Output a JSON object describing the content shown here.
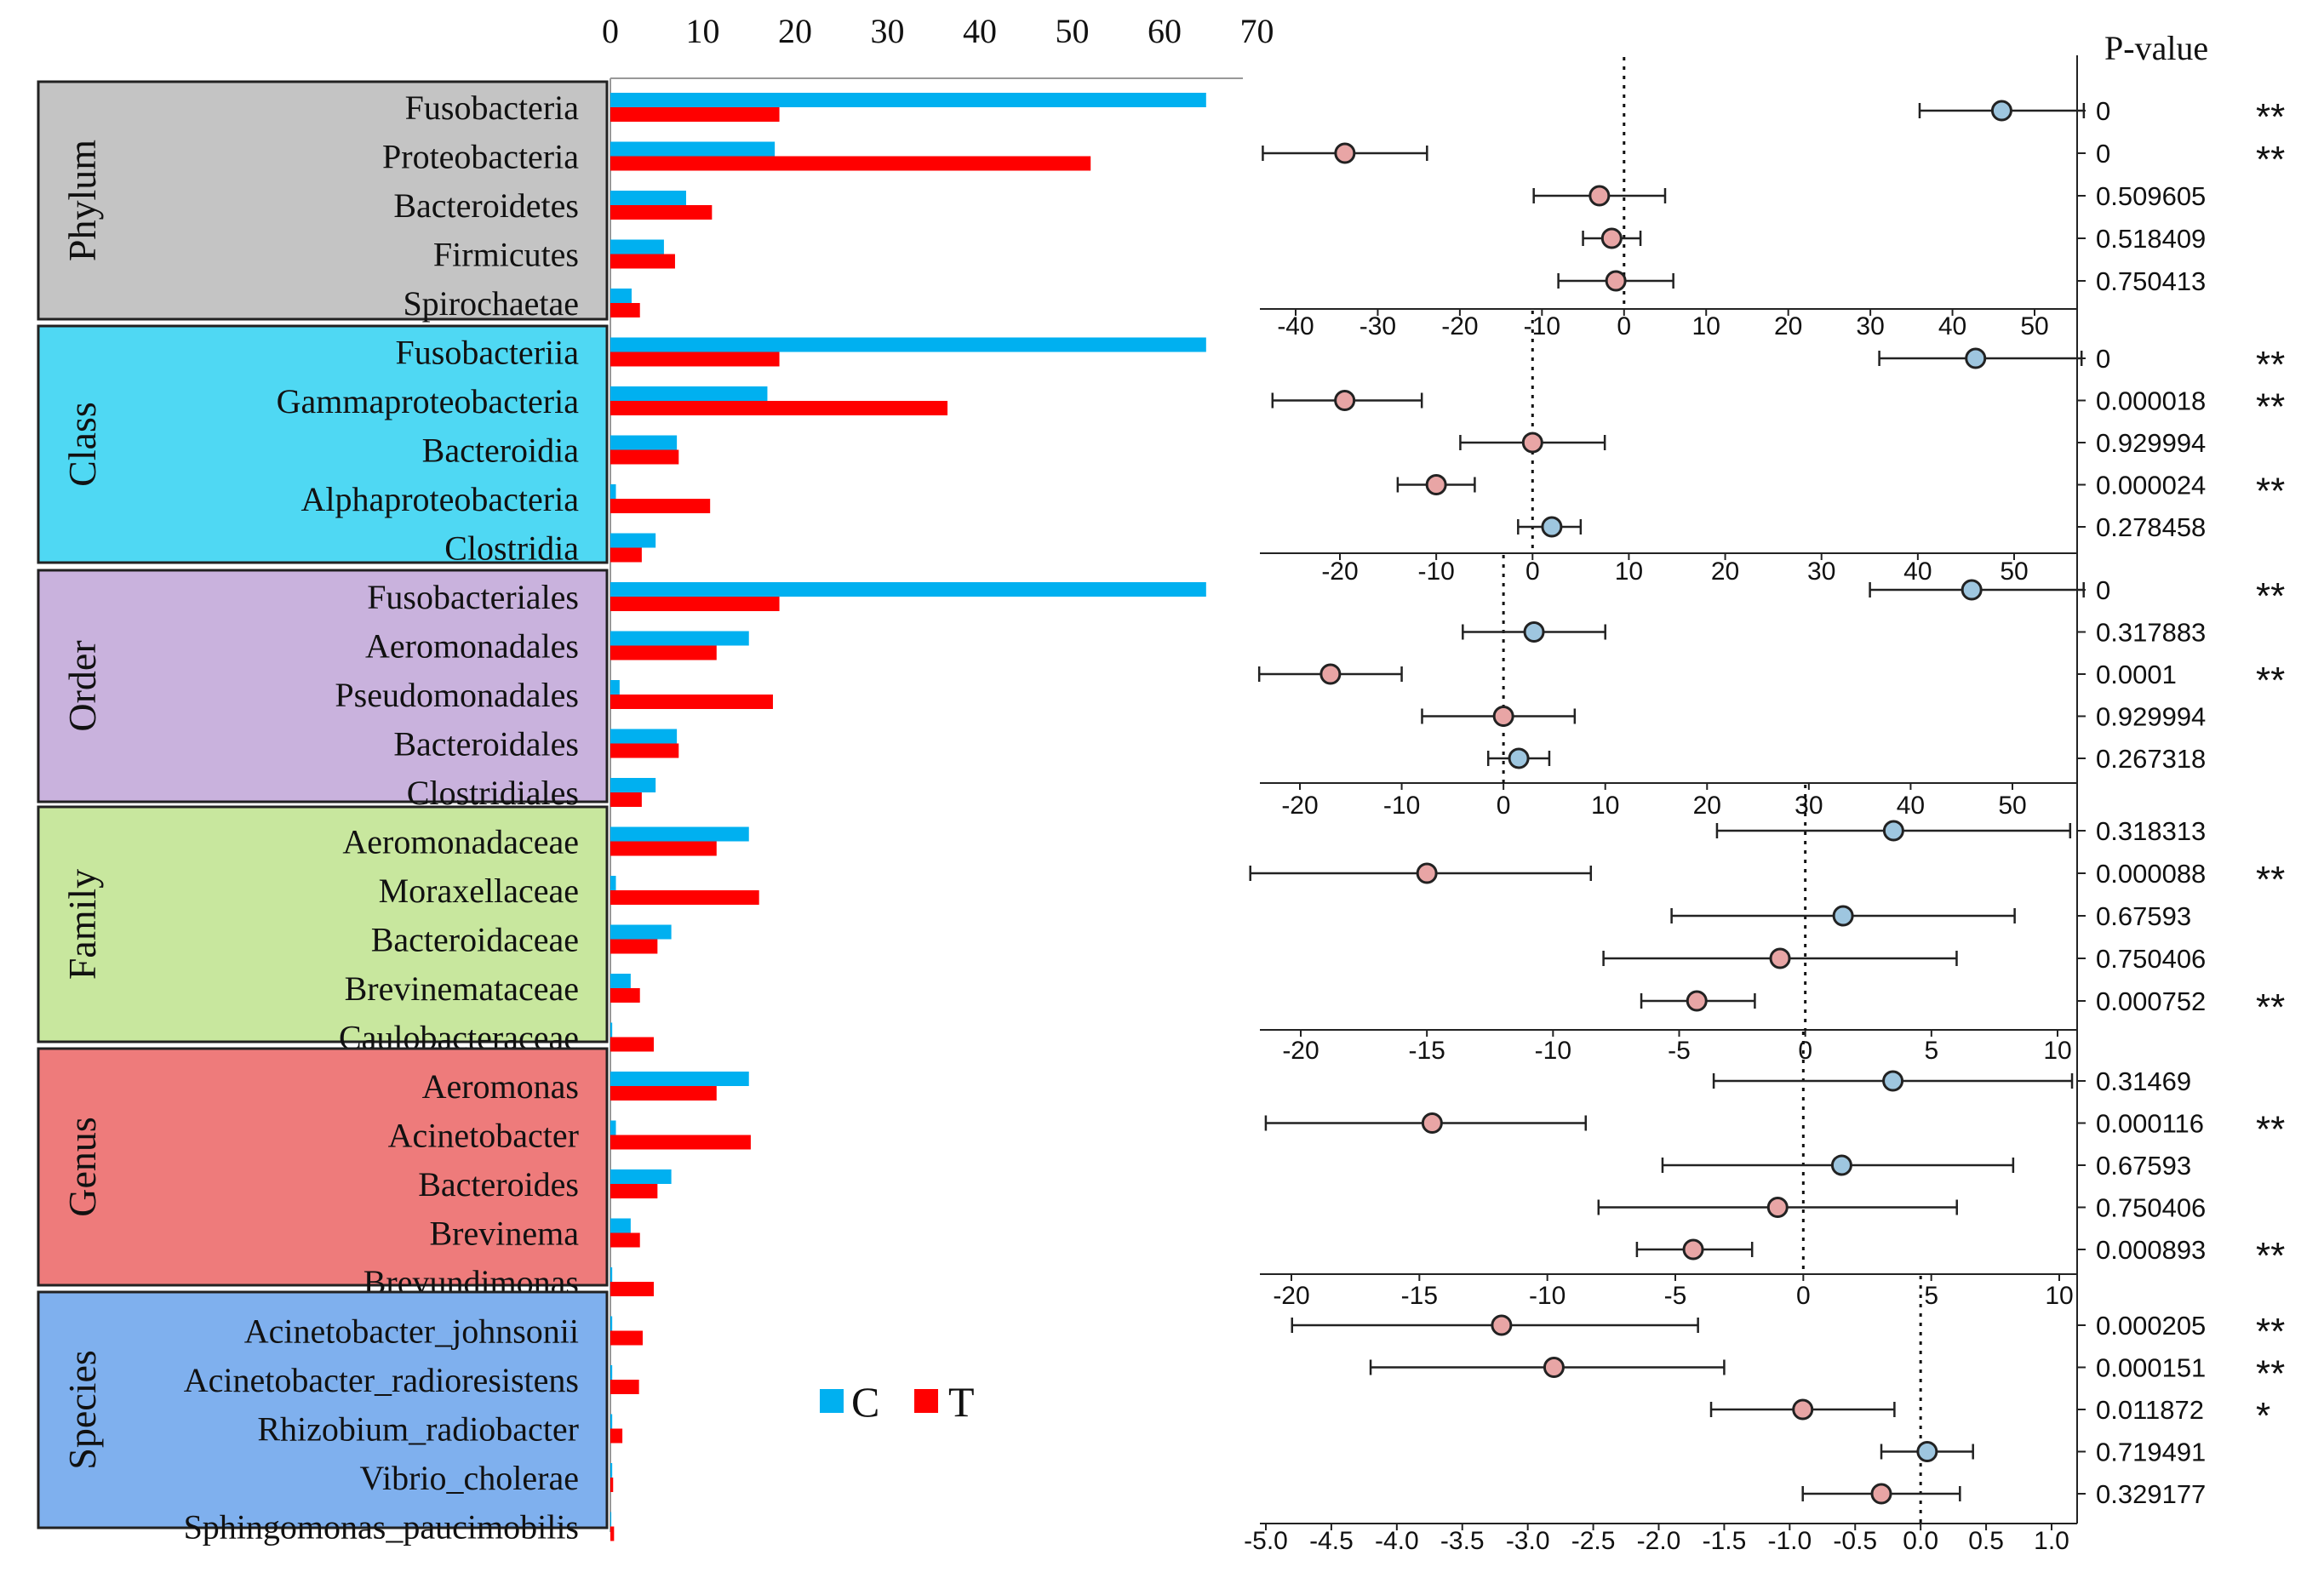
{
  "legend": {
    "c_label": "C",
    "t_label": "T",
    "c_color": "#00b0f0",
    "t_color": "#ff0000"
  },
  "pvalue_header": "P-value",
  "colors": {
    "c_bar": "#00b0f0",
    "t_bar": "#ff0000",
    "c_point": "#9ec6df",
    "t_point": "#e8a5a5",
    "phylum": "#c4c4c4",
    "class": "#4fd8f3",
    "order": "#c9b2dd",
    "family": "#c8e79e",
    "genus": "#ee7b7b",
    "species": "#7fb0ee"
  },
  "chart_data": [
    {
      "type": "bar",
      "orientation": "horizontal",
      "x_ticks": [
        "0",
        "10",
        "20",
        "30",
        "40",
        "50",
        "60",
        "70"
      ],
      "xlim": [
        0,
        70
      ],
      "legend_position": "bottom-right",
      "groups": [
        {
          "label": "Phylum",
          "categories": [
            "Fusobacteria",
            "Proteobacteria",
            "Bacteroidetes",
            "Firmicutes",
            "Spirochaetae"
          ]
        },
        {
          "label": "Class",
          "categories": [
            "Fusobacteriia",
            "Gammaproteobacteria",
            "Bacteroidia",
            "Alphaproteobacteria",
            "Clostridia"
          ]
        },
        {
          "label": "Order",
          "categories": [
            "Fusobacteriales",
            "Aeromonadales",
            "Pseudomonadales",
            "Bacteroidales",
            "Clostridiales"
          ]
        },
        {
          "label": "Family",
          "categories": [
            "Aeromonadaceae",
            "Moraxellaceae",
            "Bacteroidaceae",
            "Brevinemataceae",
            "Caulobacteraceae"
          ]
        },
        {
          "label": "Genus",
          "categories": [
            "Aeromonas",
            "Acinetobacter",
            "Bacteroides",
            "Brevinema",
            "Brevundimonas"
          ]
        },
        {
          "label": "Species",
          "categories": [
            "Acinetobacter_johnsonii",
            "Acinetobacter_radioresistens",
            "Rhizobium_radiobacter",
            "Vibrio_cholerae",
            "Sphingomonas_paucimobilis"
          ]
        }
      ],
      "series": [
        {
          "name": "C",
          "values": [
            64.5,
            17.8,
            8.2,
            5.8,
            2.3,
            64.5,
            17.0,
            7.2,
            0.6,
            4.9,
            64.5,
            15.0,
            1.0,
            7.2,
            4.9,
            15.0,
            0.6,
            6.6,
            2.2,
            0.2,
            15.0,
            0.6,
            6.6,
            2.2,
            0.2,
            0.2,
            0.2,
            0.2,
            0.2,
            0.1
          ]
        },
        {
          "name": "T",
          "values": [
            18.3,
            52.0,
            11.0,
            7.0,
            3.2,
            18.3,
            36.5,
            7.4,
            10.8,
            3.4,
            18.3,
            11.5,
            17.6,
            7.4,
            3.4,
            11.5,
            16.1,
            5.1,
            3.2,
            4.7,
            11.5,
            15.2,
            5.1,
            3.2,
            4.7,
            3.5,
            3.1,
            1.3,
            0.3,
            0.4
          ]
        }
      ]
    },
    {
      "type": "scatter",
      "error_bars": true,
      "level": "Phylum",
      "xlim": [
        -43,
        55
      ],
      "x_ticks": [
        -40,
        -30,
        -20,
        -10,
        0,
        10,
        20,
        30,
        40,
        50
      ],
      "reference_line": 0,
      "points": [
        {
          "value": 46,
          "low": 36,
          "high": 56,
          "group": "C",
          "p_value": "0",
          "sig": "**"
        },
        {
          "value": -34,
          "low": -44,
          "high": -24,
          "group": "T",
          "p_value": "0",
          "sig": "**"
        },
        {
          "value": -3,
          "low": -11,
          "high": 5,
          "group": "T",
          "p_value": "0.509605",
          "sig": ""
        },
        {
          "value": -1.5,
          "low": -5,
          "high": 2,
          "group": "T",
          "p_value": "0.518409",
          "sig": ""
        },
        {
          "value": -1,
          "low": -8,
          "high": 6,
          "group": "T",
          "p_value": "0.750413",
          "sig": ""
        }
      ]
    },
    {
      "type": "scatter",
      "error_bars": true,
      "level": "Class",
      "xlim": [
        -28,
        57
      ],
      "x_ticks": [
        -20,
        -10,
        0,
        10,
        20,
        30,
        40,
        50
      ],
      "reference_line": 0,
      "points": [
        {
          "value": 46,
          "low": 36,
          "high": 57,
          "group": "C",
          "p_value": "0",
          "sig": "**"
        },
        {
          "value": -19.5,
          "low": -27,
          "high": -11.5,
          "group": "T",
          "p_value": "0.000018",
          "sig": "**"
        },
        {
          "value": 0,
          "low": -7.5,
          "high": 7.5,
          "group": "T",
          "p_value": "0.929994",
          "sig": ""
        },
        {
          "value": -10,
          "low": -14,
          "high": -6,
          "group": "T",
          "p_value": "0.000024",
          "sig": "**"
        },
        {
          "value": 2,
          "low": -1.5,
          "high": 5,
          "group": "C",
          "p_value": "0.278458",
          "sig": ""
        }
      ]
    },
    {
      "type": "scatter",
      "error_bars": true,
      "level": "Order",
      "xlim": [
        -24,
        57
      ],
      "x_ticks": [
        -20,
        -10,
        0,
        10,
        20,
        30,
        40,
        50
      ],
      "reference_line": 0,
      "points": [
        {
          "value": 46,
          "low": 36,
          "high": 57,
          "group": "C",
          "p_value": "0",
          "sig": "**"
        },
        {
          "value": 3,
          "low": -4,
          "high": 10,
          "group": "C",
          "p_value": "0.317883",
          "sig": ""
        },
        {
          "value": -17,
          "low": -24,
          "high": -10,
          "group": "T",
          "p_value": "0.0001",
          "sig": "**"
        },
        {
          "value": 0,
          "low": -8,
          "high": 7,
          "group": "T",
          "p_value": "0.929994",
          "sig": ""
        },
        {
          "value": 1.5,
          "low": -1.5,
          "high": 4.5,
          "group": "C",
          "p_value": "0.267318",
          "sig": ""
        }
      ]
    },
    {
      "type": "scatter",
      "error_bars": true,
      "level": "Family",
      "xlim": [
        -22,
        10.5
      ],
      "x_ticks": [
        -20,
        -15,
        -10,
        -5,
        0,
        5,
        10
      ],
      "reference_line": 0,
      "points": [
        {
          "value": 3.5,
          "low": -3.5,
          "high": 10.5,
          "group": "C",
          "p_value": "0.318313",
          "sig": ""
        },
        {
          "value": -15,
          "low": -22,
          "high": -8.5,
          "group": "T",
          "p_value": "0.000088",
          "sig": "**"
        },
        {
          "value": 1.5,
          "low": -5.3,
          "high": 8.3,
          "group": "C",
          "p_value": "0.67593",
          "sig": ""
        },
        {
          "value": -1,
          "low": -8,
          "high": 6,
          "group": "T",
          "p_value": "0.750406",
          "sig": ""
        },
        {
          "value": -4.3,
          "low": -6.5,
          "high": -2,
          "group": "T",
          "p_value": "0.000752",
          "sig": "**"
        }
      ]
    },
    {
      "type": "scatter",
      "error_bars": true,
      "level": "Genus",
      "xlim": [
        -21,
        10.5
      ],
      "x_ticks": [
        -20,
        -15,
        -10,
        -5,
        0,
        5,
        10
      ],
      "reference_line": 0,
      "points": [
        {
          "value": 3.5,
          "low": -3.5,
          "high": 10.5,
          "group": "C",
          "p_value": "0.31469",
          "sig": ""
        },
        {
          "value": -14.5,
          "low": -21,
          "high": -8.5,
          "group": "T",
          "p_value": "0.000116",
          "sig": "**"
        },
        {
          "value": 1.5,
          "low": -5.5,
          "high": 8.2,
          "group": "C",
          "p_value": "0.67593",
          "sig": ""
        },
        {
          "value": -1,
          "low": -8,
          "high": 6,
          "group": "T",
          "p_value": "0.750406",
          "sig": ""
        },
        {
          "value": -4.3,
          "low": -6.5,
          "high": -2,
          "group": "T",
          "p_value": "0.000893",
          "sig": "**"
        }
      ]
    },
    {
      "type": "scatter",
      "error_bars": true,
      "level": "Species",
      "xlim": [
        -4.9,
        1.0
      ],
      "x_ticks": [
        "-5.0",
        "-4.5",
        "-4.0",
        "-3.5",
        "-3.0",
        "-2.5",
        "-2.0",
        "-1.5",
        "-1.0",
        "-0.5",
        "0.0",
        "0.5",
        "1.0"
      ],
      "reference_line": 0,
      "points": [
        {
          "value": -3.2,
          "low": -4.8,
          "high": -1.7,
          "group": "T",
          "p_value": "0.000205",
          "sig": "**"
        },
        {
          "value": -2.8,
          "low": -4.2,
          "high": -1.5,
          "group": "T",
          "p_value": "0.000151",
          "sig": "**"
        },
        {
          "value": -0.9,
          "low": -1.6,
          "high": -0.2,
          "group": "T",
          "p_value": "0.011872",
          "sig": "*"
        },
        {
          "value": 0.05,
          "low": -0.3,
          "high": 0.4,
          "group": "C",
          "p_value": "0.719491",
          "sig": ""
        },
        {
          "value": -0.3,
          "low": -0.9,
          "high": 0.3,
          "group": "T",
          "p_value": "0.329177",
          "sig": ""
        }
      ]
    }
  ]
}
